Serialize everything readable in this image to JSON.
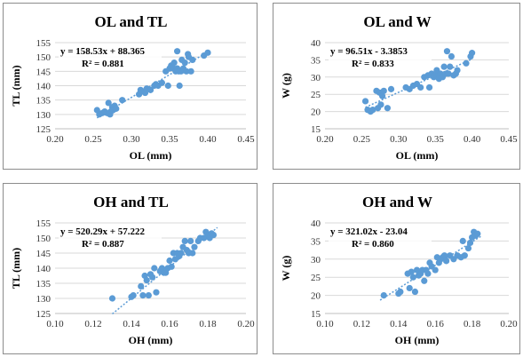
{
  "chart_data": [
    {
      "type": "scatter",
      "title": "OL and TL",
      "xlabel": "OL (mm)",
      "ylabel": "TL (mm)",
      "xlim": [
        0.2,
        0.45
      ],
      "ylim": [
        125,
        155
      ],
      "xticks": [
        "0.20",
        "0.25",
        "0.30",
        "0.35",
        "0.40",
        "0.45"
      ],
      "yticks": [
        "125",
        "130",
        "135",
        "140",
        "145",
        "150",
        "155"
      ],
      "equation": "y = 158.53x + 88.365",
      "r2": "R² = 0.881",
      "trendline": {
        "slope": 158.53,
        "intercept": 88.365,
        "x_range": [
          0.255,
          0.4
        ]
      },
      "marker_color": "#5b9bd5",
      "grid": "horizontal",
      "x": [
        0.255,
        0.258,
        0.262,
        0.265,
        0.268,
        0.27,
        0.272,
        0.273,
        0.275,
        0.276,
        0.278,
        0.28,
        0.288,
        0.31,
        0.312,
        0.315,
        0.318,
        0.32,
        0.325,
        0.33,
        0.332,
        0.335,
        0.34,
        0.345,
        0.348,
        0.35,
        0.352,
        0.355,
        0.356,
        0.358,
        0.36,
        0.36,
        0.362,
        0.363,
        0.365,
        0.366,
        0.368,
        0.37,
        0.372,
        0.374,
        0.375,
        0.378,
        0.38,
        0.395,
        0.4
      ],
      "y": [
        131.5,
        130,
        130.5,
        131,
        130.5,
        134,
        130,
        131,
        132.5,
        131.5,
        133,
        132,
        135,
        137,
        138.5,
        138,
        137.5,
        139,
        138.5,
        140,
        140.5,
        140,
        141,
        145,
        140,
        146,
        147,
        146,
        148,
        145,
        146,
        152,
        145,
        140,
        145,
        149,
        146,
        148,
        145,
        151,
        150,
        145,
        149,
        150.5,
        151.5
      ]
    },
    {
      "type": "scatter",
      "title": "OL and W",
      "xlabel": "OL (mm)",
      "ylabel": "W (g)",
      "xlim": [
        0.2,
        0.45
      ],
      "ylim": [
        15,
        40
      ],
      "xticks": [
        "0.20",
        "0.25",
        "0.30",
        "0.35",
        "0.40",
        "0.45"
      ],
      "yticks": [
        "15",
        "20",
        "25",
        "30",
        "35",
        "40"
      ],
      "equation": "y = 96.51x - 3.3853",
      "r2": "R² = 0.833",
      "trendline": {
        "slope": 96.51,
        "intercept": -3.3853,
        "x_range": [
          0.255,
          0.4
        ]
      },
      "marker_color": "#5b9bd5",
      "grid": "horizontal",
      "x": [
        0.255,
        0.258,
        0.262,
        0.265,
        0.27,
        0.272,
        0.274,
        0.276,
        0.278,
        0.28,
        0.285,
        0.29,
        0.31,
        0.315,
        0.32,
        0.325,
        0.33,
        0.335,
        0.34,
        0.342,
        0.345,
        0.348,
        0.35,
        0.352,
        0.355,
        0.357,
        0.36,
        0.362,
        0.365,
        0.366,
        0.368,
        0.37,
        0.372,
        0.375,
        0.378,
        0.38,
        0.392,
        0.398,
        0.4
      ],
      "y": [
        23,
        20.5,
        20,
        20.5,
        26,
        21,
        25.5,
        22,
        24.5,
        26,
        21,
        26.5,
        27,
        26.5,
        27.5,
        28,
        27,
        30,
        30.5,
        27,
        31,
        30,
        30.5,
        32,
        29.5,
        31,
        30,
        33,
        31,
        37.5,
        31,
        33,
        36,
        30.5,
        31,
        32,
        34,
        36,
        37
      ]
    },
    {
      "type": "scatter",
      "title": "OH and TL",
      "xlabel": "OH (mm)",
      "ylabel": "TL (mm)",
      "xlim": [
        0.1,
        0.2
      ],
      "ylim": [
        125,
        155
      ],
      "xticks": [
        "0.10",
        "0.12",
        "0.14",
        "0.16",
        "0.18",
        "0.20"
      ],
      "yticks": [
        "125",
        "130",
        "135",
        "140",
        "145",
        "150",
        "155"
      ],
      "equation": "y = 520.29x + 57.222",
      "r2": "R² = 0.887",
      "trendline": {
        "slope": 520.29,
        "intercept": 57.222,
        "x_range": [
          0.13,
          0.185
        ]
      },
      "marker_color": "#5b9bd5",
      "grid": "horizontal",
      "x": [
        0.13,
        0.14,
        0.141,
        0.145,
        0.146,
        0.147,
        0.148,
        0.149,
        0.15,
        0.151,
        0.152,
        0.153,
        0.155,
        0.156,
        0.157,
        0.158,
        0.159,
        0.16,
        0.161,
        0.162,
        0.163,
        0.164,
        0.165,
        0.166,
        0.167,
        0.168,
        0.169,
        0.17,
        0.171,
        0.172,
        0.173,
        0.175,
        0.176,
        0.178,
        0.179,
        0.18,
        0.181,
        0.182,
        0.183
      ],
      "y": [
        130,
        130.5,
        131,
        134,
        131,
        137.5,
        136,
        131,
        138,
        137,
        140,
        132,
        139,
        140,
        138.5,
        138.5,
        140,
        142.5,
        140.5,
        145,
        143,
        145,
        144,
        145,
        147,
        149,
        146,
        145,
        149,
        145,
        147,
        149,
        150,
        150,
        152,
        151,
        150,
        151.5,
        151
      ]
    },
    {
      "type": "scatter",
      "title": "OH and W",
      "xlabel": "OH (mm)",
      "ylabel": "W (g)",
      "xlim": [
        0.1,
        0.2
      ],
      "ylim": [
        15,
        40
      ],
      "xticks": [
        "0.10",
        "0.12",
        "0.14",
        "0.16",
        "0.18",
        "0.20"
      ],
      "yticks": [
        "15",
        "20",
        "25",
        "30",
        "35",
        "40"
      ],
      "equation": "y = 321.02x - 23.04",
      "r2": "R² = 0.860",
      "trendline": {
        "slope": 321.02,
        "intercept": -23.04,
        "x_range": [
          0.13,
          0.185
        ]
      },
      "marker_color": "#5b9bd5",
      "grid": "horizontal",
      "x": [
        0.132,
        0.14,
        0.141,
        0.145,
        0.146,
        0.147,
        0.148,
        0.149,
        0.15,
        0.151,
        0.152,
        0.153,
        0.154,
        0.155,
        0.156,
        0.157,
        0.158,
        0.16,
        0.161,
        0.162,
        0.163,
        0.164,
        0.165,
        0.166,
        0.168,
        0.17,
        0.172,
        0.174,
        0.175,
        0.176,
        0.178,
        0.179,
        0.18,
        0.181,
        0.182,
        0.183
      ],
      "y": [
        20,
        20.5,
        21,
        26,
        22,
        26.5,
        25,
        21,
        27,
        25.5,
        26,
        27,
        24,
        27,
        26,
        29,
        28,
        27,
        30.5,
        29,
        30,
        30.5,
        31,
        29.5,
        31,
        30,
        31,
        30.5,
        35,
        31,
        33,
        34.5,
        36,
        37.5,
        36.5,
        37
      ]
    }
  ]
}
